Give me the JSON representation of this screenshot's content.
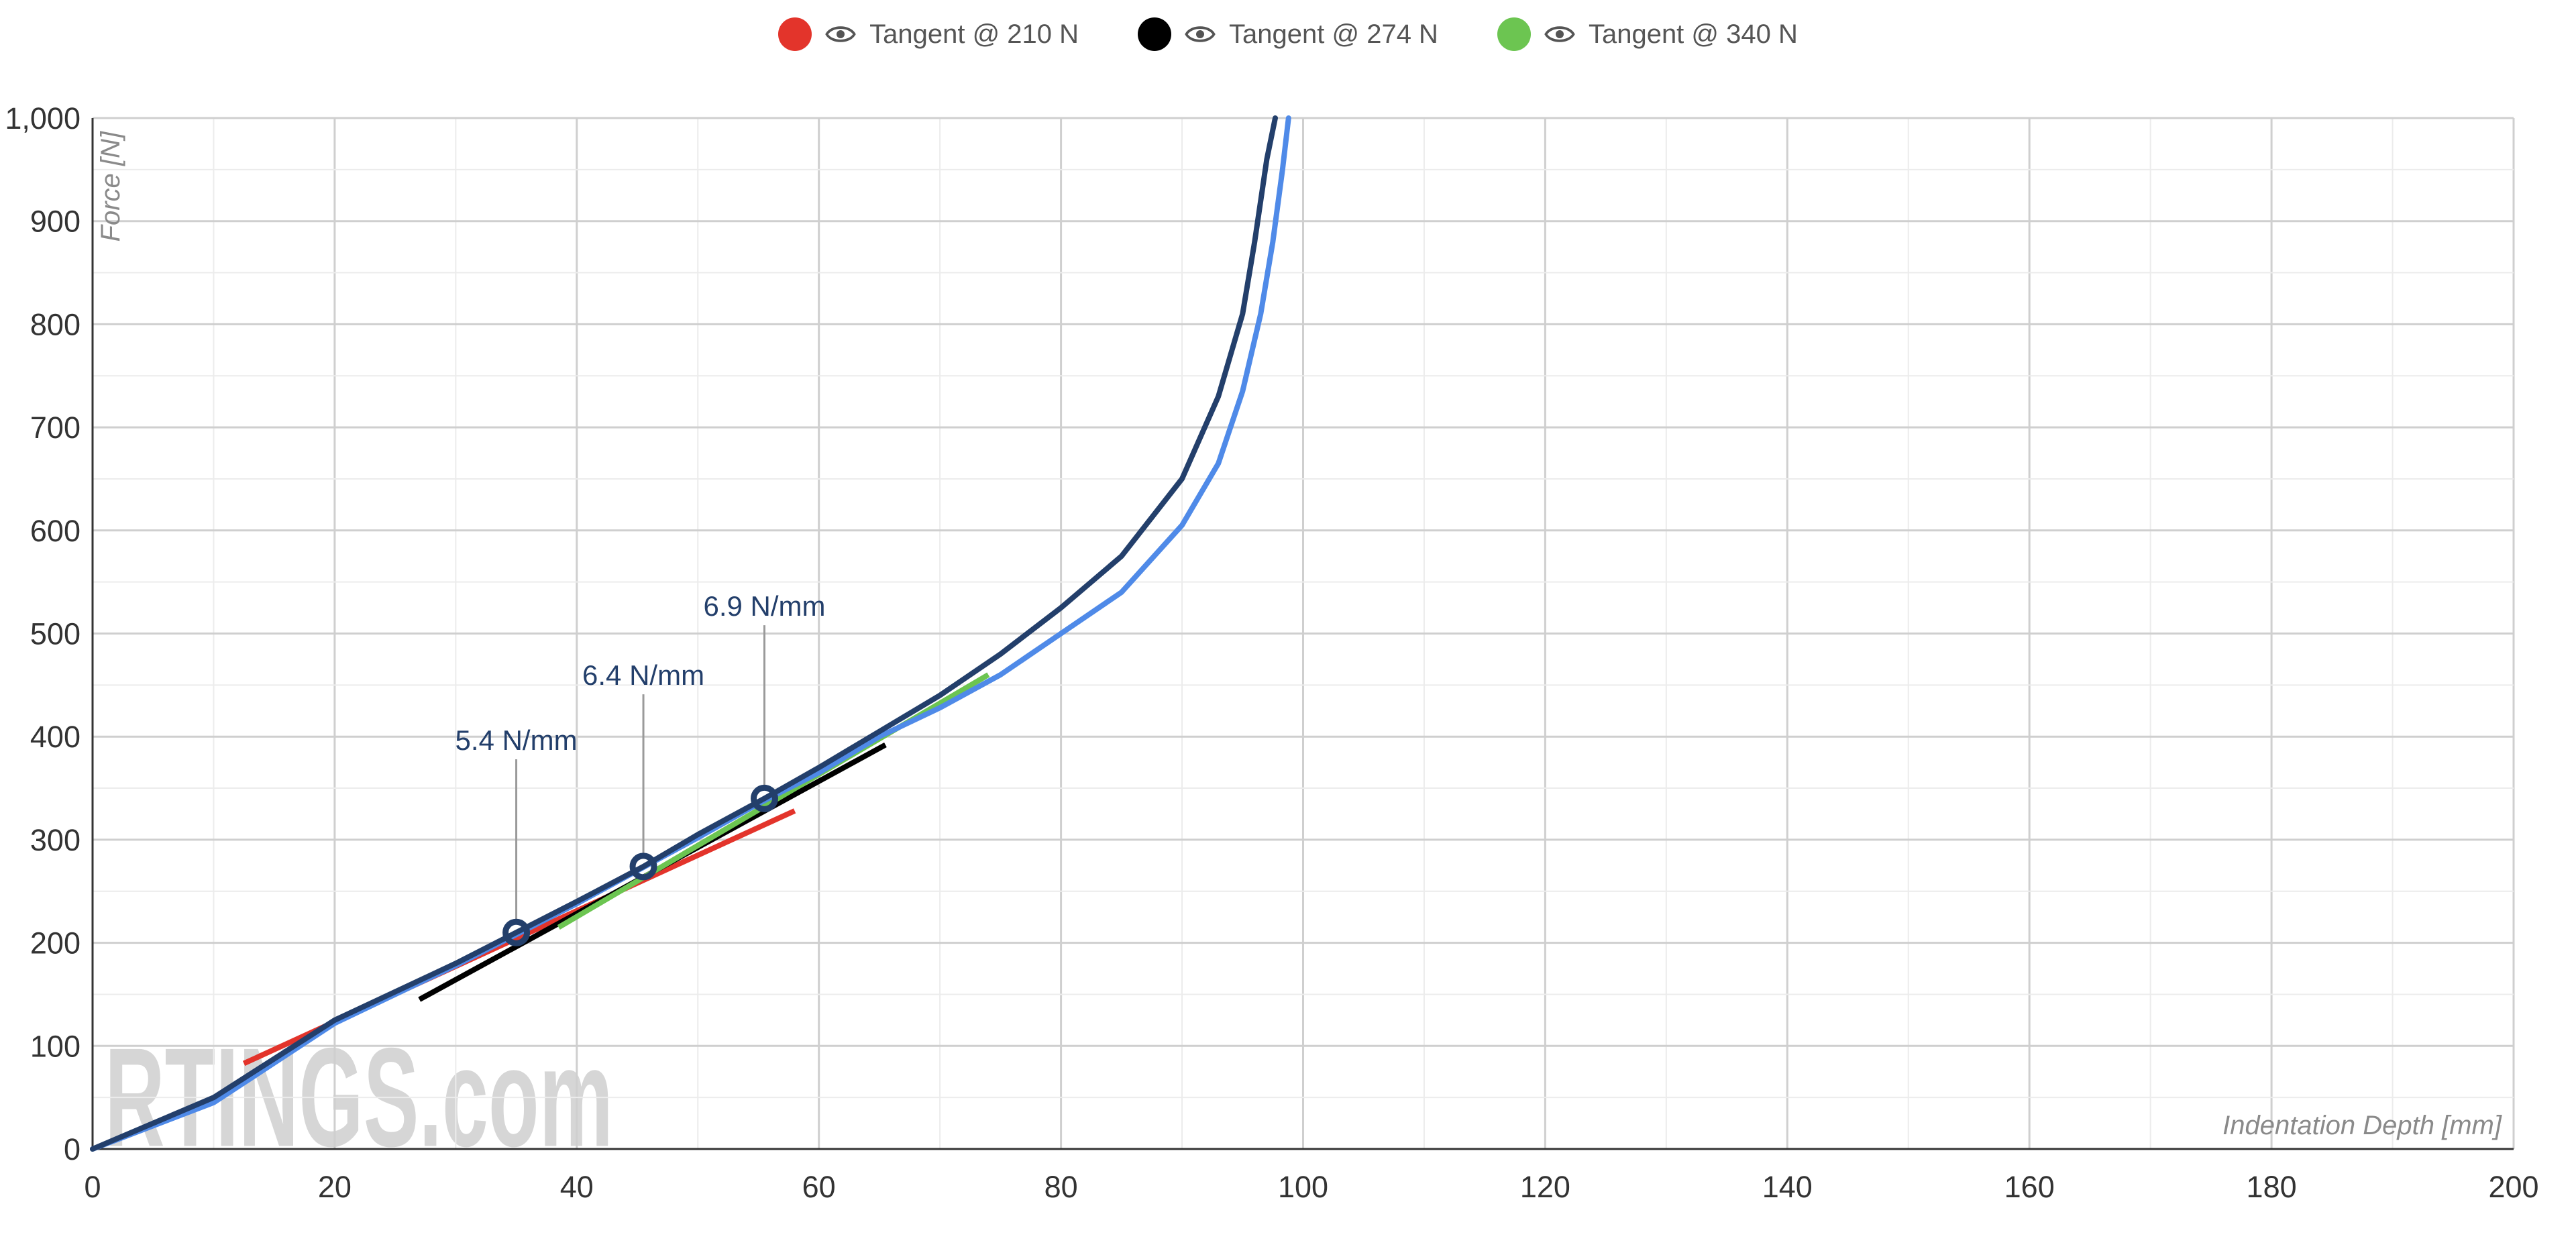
{
  "chart_data": {
    "type": "line",
    "xlabel": "Indentation Depth [mm]",
    "ylabel": "Force [N]",
    "xlim": [
      0,
      200
    ],
    "ylim": [
      0,
      1000
    ],
    "x_ticks": [
      "0",
      "20",
      "40",
      "60",
      "80",
      "100",
      "120",
      "140",
      "160",
      "180",
      "200"
    ],
    "y_ticks": [
      "0",
      "100",
      "200",
      "300",
      "400",
      "500",
      "600",
      "700",
      "800",
      "900",
      "1,000"
    ],
    "grid": true,
    "legend_position": "top-center",
    "legend": [
      {
        "label": "Tangent @ 210 N",
        "color": "#e3342b"
      },
      {
        "label": "Tangent @ 274 N",
        "color": "#000000"
      },
      {
        "label": "Tangent @ 340 N",
        "color": "#6cc551"
      }
    ],
    "series": [
      {
        "color": "#233f6b",
        "points": [
          [
            0,
            0
          ],
          [
            10,
            50
          ],
          [
            20,
            125
          ],
          [
            30,
            180
          ],
          [
            35,
            210
          ],
          [
            40,
            240
          ],
          [
            45.5,
            274
          ],
          [
            50,
            305
          ],
          [
            55.5,
            340
          ],
          [
            60,
            370
          ],
          [
            65,
            405
          ],
          [
            70,
            440
          ],
          [
            75,
            480
          ],
          [
            80,
            525
          ],
          [
            85,
            575
          ],
          [
            90,
            650
          ],
          [
            93,
            730
          ],
          [
            95,
            810
          ],
          [
            96,
            880
          ],
          [
            97,
            960
          ],
          [
            97.7,
            1000
          ]
        ]
      },
      {
        "color": "#4f8ae8",
        "points": [
          [
            0,
            0
          ],
          [
            10,
            45
          ],
          [
            20,
            122
          ],
          [
            30,
            178
          ],
          [
            35,
            208
          ],
          [
            40,
            238
          ],
          [
            45,
            270
          ],
          [
            50,
            302
          ],
          [
            55,
            335
          ],
          [
            60,
            365
          ],
          [
            65,
            400
          ],
          [
            70,
            428
          ],
          [
            75,
            460
          ],
          [
            80,
            500
          ],
          [
            85,
            540
          ],
          [
            90,
            605
          ],
          [
            93,
            665
          ],
          [
            95,
            735
          ],
          [
            96.5,
            810
          ],
          [
            97.5,
            880
          ],
          [
            98.3,
            950
          ],
          [
            98.8,
            1000
          ]
        ]
      }
    ],
    "tangents": [
      {
        "label": "Tangent @ 210 N",
        "color": "#e3342b",
        "from": [
          12.5,
          83
        ],
        "to": [
          58,
          328
        ]
      },
      {
        "label": "Tangent @ 274 N",
        "color": "#000000",
        "from": [
          27,
          145
        ],
        "to": [
          65.5,
          392
        ]
      },
      {
        "label": "Tangent @ 340 N",
        "color": "#6cc551",
        "from": [
          38.5,
          215
        ],
        "to": [
          74,
          460
        ]
      }
    ],
    "annotations": [
      {
        "x": 35,
        "y": 210,
        "label": "5.4 N/mm",
        "label_y": 365
      },
      {
        "x": 45.5,
        "y": 274,
        "label": "6.4 N/mm",
        "label_y": 428
      },
      {
        "x": 55.5,
        "y": 340,
        "label": "6.9 N/mm",
        "label_y": 495
      }
    ],
    "watermark": "RTINGS.com"
  }
}
